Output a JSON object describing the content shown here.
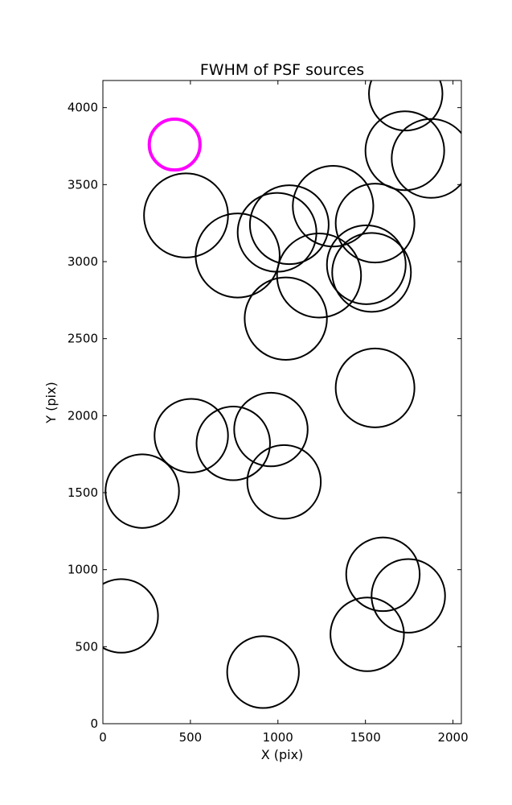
{
  "chart_data": {
    "type": "scatter",
    "title": "FWHM of PSF sources",
    "xlabel": "X (pix)",
    "ylabel": "Y (pix)",
    "xlim": [
      0,
      2048
    ],
    "ylim": [
      0,
      4176
    ],
    "xticks": [
      0,
      500,
      1000,
      1500,
      2000
    ],
    "yticks": [
      0,
      500,
      1000,
      1500,
      2000,
      2500,
      3000,
      3500,
      4000
    ],
    "grid": false,
    "legend": "none",
    "marker": "circle",
    "default_color": "#000000",
    "highlight_color": "#ff00ff",
    "circles": [
      {
        "x": 1730,
        "y": 4090,
        "r": 210
      },
      {
        "x": 1725,
        "y": 3720,
        "r": 225
      },
      {
        "x": 1875,
        "y": 3670,
        "r": 225
      },
      {
        "x": 410,
        "y": 3760,
        "r": 145,
        "highlight": true
      },
      {
        "x": 475,
        "y": 3300,
        "r": 240
      },
      {
        "x": 1315,
        "y": 3360,
        "r": 230
      },
      {
        "x": 1555,
        "y": 3250,
        "r": 225
      },
      {
        "x": 1065,
        "y": 3240,
        "r": 225
      },
      {
        "x": 995,
        "y": 3190,
        "r": 225
      },
      {
        "x": 770,
        "y": 3040,
        "r": 240
      },
      {
        "x": 1235,
        "y": 2910,
        "r": 240
      },
      {
        "x": 1505,
        "y": 2980,
        "r": 225
      },
      {
        "x": 1535,
        "y": 2930,
        "r": 225
      },
      {
        "x": 1045,
        "y": 2630,
        "r": 235
      },
      {
        "x": 1555,
        "y": 2180,
        "r": 225
      },
      {
        "x": 505,
        "y": 1870,
        "r": 210
      },
      {
        "x": 745,
        "y": 1820,
        "r": 210
      },
      {
        "x": 960,
        "y": 1910,
        "r": 210
      },
      {
        "x": 1035,
        "y": 1570,
        "r": 210
      },
      {
        "x": 225,
        "y": 1510,
        "r": 210
      },
      {
        "x": 1600,
        "y": 970,
        "r": 210
      },
      {
        "x": 1745,
        "y": 830,
        "r": 210
      },
      {
        "x": 1510,
        "y": 580,
        "r": 210
      },
      {
        "x": 105,
        "y": 700,
        "r": 210
      },
      {
        "x": 915,
        "y": 335,
        "r": 205
      }
    ]
  }
}
